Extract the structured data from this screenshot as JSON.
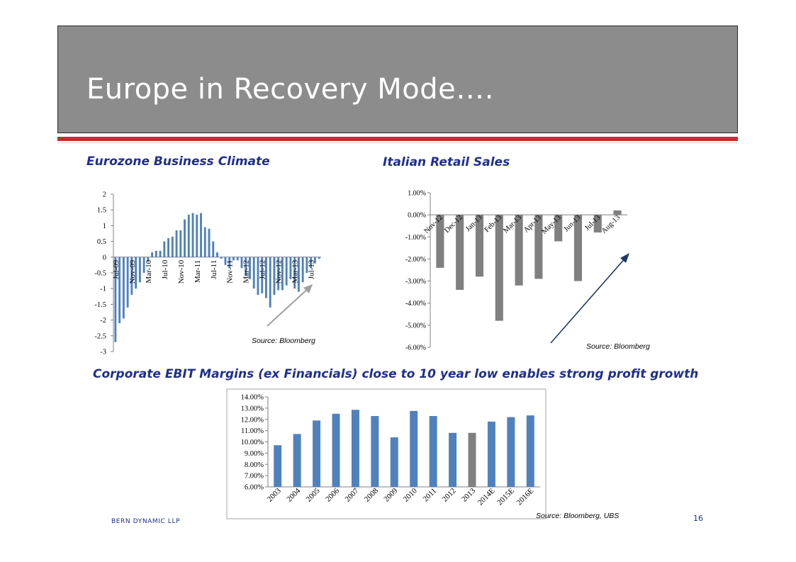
{
  "slide": {
    "title": "Europe in Recovery Mode….",
    "footer_company": "BERN DYNAMIC LLP",
    "page_number": "16",
    "bottom_source": "Source: Bloomberg, UBS"
  },
  "colors": {
    "title_bar": "#8c8c8c",
    "accent_red": "#c0322b",
    "heading_navy": "#1f2f8a",
    "bar_blue": "#4f81bd",
    "bar_gray": "#808080",
    "arrow_navy": "#1f3864"
  },
  "chart_data": [
    {
      "id": "eurozone",
      "type": "bar",
      "title": "Eurozone Business Climate",
      "source": "Source: Bloomberg",
      "ylim": [
        -3,
        2
      ],
      "yticks": [
        -3,
        -2.5,
        -2,
        -1.5,
        -1,
        -0.5,
        0,
        0.5,
        1,
        1.5,
        2
      ],
      "ytick_labels": [
        "-3",
        "-2.5",
        "-2",
        "-1.5",
        "-1",
        "-0.5",
        "0",
        "0.5",
        "1",
        "1.5",
        "2"
      ],
      "xtick_labels": [
        "Jul-09",
        "Nov-09",
        "Mar-10",
        "Jul-10",
        "Nov-10",
        "Mar-11",
        "Jul-11",
        "Nov-11",
        "Mar-12",
        "Jul-12",
        "Nov-12",
        "Mar-13",
        "Jul-13"
      ],
      "xtick_every": 4,
      "values": [
        -2.7,
        -2.1,
        -1.95,
        -1.6,
        -1.2,
        -1.0,
        -0.8,
        -0.5,
        -0.15,
        0.15,
        0.2,
        0.2,
        0.5,
        0.6,
        0.65,
        0.85,
        0.85,
        1.2,
        1.35,
        1.4,
        1.35,
        1.4,
        0.95,
        0.9,
        0.5,
        0.15,
        -0.05,
        -0.25,
        -0.35,
        -0.1,
        -0.1,
        -0.35,
        -0.6,
        -0.7,
        -1.0,
        -1.2,
        -1.15,
        -1.3,
        -1.6,
        -1.2,
        -1.05,
        -1.05,
        -0.9,
        -0.7,
        -1.0,
        -1.1,
        -0.8,
        -0.5,
        -0.35,
        -0.2,
        -0.05
      ]
    },
    {
      "id": "italian_retail",
      "type": "bar",
      "title": "Italian Retail Sales",
      "source": "Source: Bloomberg",
      "ylim": [
        -6,
        1
      ],
      "yticks": [
        -6,
        -5,
        -4,
        -3,
        -2,
        -1,
        0,
        1
      ],
      "ytick_labels": [
        "-6.00%",
        "-5.00%",
        "-4.00%",
        "-3.00%",
        "-2.00%",
        "-1.00%",
        "0.00%",
        "1.00%"
      ],
      "categories": [
        "Nov-12",
        "Dec-12",
        "Jan-13",
        "Feb-13",
        "Mar-13",
        "Apr-13",
        "May-13",
        "Jun-13",
        "Jul-13",
        "Aug-13"
      ],
      "values": [
        -2.4,
        -3.4,
        -2.8,
        -4.8,
        -3.2,
        -2.9,
        -1.2,
        -3.0,
        -0.8,
        0.2
      ]
    },
    {
      "id": "ebit_margins",
      "type": "bar",
      "title": "Corporate EBIT Margins (ex Financials) close to 10 year low enables strong profit growth",
      "ylim": [
        6,
        14
      ],
      "yticks": [
        6,
        7,
        8,
        9,
        10,
        11,
        12,
        13,
        14
      ],
      "ytick_labels": [
        "6.00%",
        "7.00%",
        "8.00%",
        "9.00%",
        "10.00%",
        "11.00%",
        "12.00%",
        "13.00%",
        "14.00%"
      ],
      "categories": [
        "2003",
        "2004",
        "2005",
        "2006",
        "2007",
        "2008",
        "2009",
        "2010",
        "2011",
        "2012",
        "2013",
        "2014E",
        "2015E",
        "2016E"
      ],
      "values": [
        9.7,
        10.7,
        11.9,
        12.5,
        12.85,
        12.3,
        10.4,
        12.75,
        12.3,
        10.8,
        10.8,
        11.8,
        12.2,
        12.35
      ],
      "highlight_index": 10
    }
  ]
}
